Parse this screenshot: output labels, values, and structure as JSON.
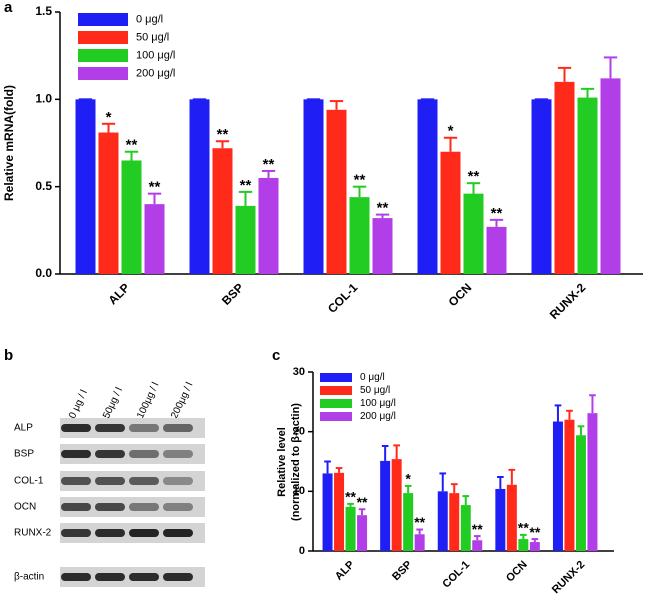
{
  "chart_data": [
    {
      "type": "bar",
      "panel": "a",
      "ylabel": [
        "Relative mRNA(fold)"
      ],
      "categories": [
        "ALP",
        "BSP",
        "COL-1",
        "OCN",
        "RUNX-2"
      ],
      "series": [
        {
          "name": "0 μg/l",
          "color": "#1f1ff5",
          "values": [
            1.0,
            1.0,
            1.0,
            1.0,
            1.0
          ],
          "errors": [
            0,
            0,
            0,
            0,
            0
          ]
        },
        {
          "name": "50 μg/l",
          "color": "#ff2a1a",
          "values": [
            0.81,
            0.72,
            0.94,
            0.7,
            1.1
          ],
          "errors": [
            0.05,
            0.04,
            0.05,
            0.08,
            0.08
          ],
          "annotations": [
            "*",
            "**",
            null,
            "*",
            null
          ]
        },
        {
          "name": "100 μg/l",
          "color": "#22cc22",
          "values": [
            0.65,
            0.39,
            0.44,
            0.46,
            1.01
          ],
          "errors": [
            0.05,
            0.08,
            0.06,
            0.06,
            0.05
          ],
          "annotations": [
            "**",
            "**",
            "**",
            "**",
            null
          ]
        },
        {
          "name": "200 μg/l",
          "color": "#b23ee8",
          "values": [
            0.4,
            0.55,
            0.32,
            0.27,
            1.12
          ],
          "errors": [
            0.06,
            0.04,
            0.02,
            0.04,
            0.12
          ],
          "annotations": [
            "**",
            "**",
            "**",
            "**",
            null
          ]
        }
      ],
      "ylim": [
        0,
        1.5
      ],
      "yticks": [
        {
          "value": 0,
          "label": "0.0"
        },
        {
          "value": 0.5,
          "label": "0.5"
        },
        {
          "value": 1,
          "label": "1.0"
        },
        {
          "value": 1.5,
          "label": "1.5"
        }
      ],
      "legend": "top-left"
    },
    {
      "type": "bar",
      "panel": "c",
      "ylabel": [
        "Relative level",
        "(normalized to  β-actin)"
      ],
      "categories": [
        "ALP",
        "BSP",
        "COL-1",
        "OCN",
        "RUNX-2"
      ],
      "series": [
        {
          "name": "0 μg/l",
          "color": "#1f1ff5",
          "values": [
            13.0,
            15.1,
            10.0,
            10.4,
            21.7
          ],
          "errors": [
            2.0,
            2.5,
            3.0,
            2.0,
            2.7
          ]
        },
        {
          "name": "50 μg/l",
          "color": "#ff2a1a",
          "values": [
            13.1,
            15.4,
            9.7,
            11.1,
            22.0
          ],
          "errors": [
            0.8,
            2.3,
            1.5,
            2.5,
            1.5
          ]
        },
        {
          "name": "100 μg/l",
          "color": "#22cc22",
          "values": [
            7.4,
            9.7,
            7.7,
            2.0,
            19.4
          ],
          "errors": [
            0.5,
            1.2,
            1.5,
            0.7,
            1.5
          ],
          "annotations": [
            "**",
            "*",
            null,
            "**",
            null
          ]
        },
        {
          "name": "200 μg/l",
          "color": "#b23ee8",
          "values": [
            6.0,
            2.8,
            1.8,
            1.5,
            23.1
          ],
          "errors": [
            1.0,
            0.8,
            0.7,
            0.5,
            3.0
          ],
          "annotations": [
            "**",
            "**",
            "**",
            "**",
            null
          ]
        }
      ],
      "ylim": [
        0,
        30
      ],
      "yticks": [
        0,
        10,
        20,
        30
      ],
      "legend": "top-left"
    }
  ],
  "blot": {
    "panel": "b",
    "columns": [
      "0 μg / l",
      "50μg / l",
      "100μg / l",
      "200μg / l"
    ],
    "rows": [
      "ALP",
      "BSP",
      "COL-1",
      "OCN",
      "RUNX-2",
      "β-actin"
    ]
  }
}
